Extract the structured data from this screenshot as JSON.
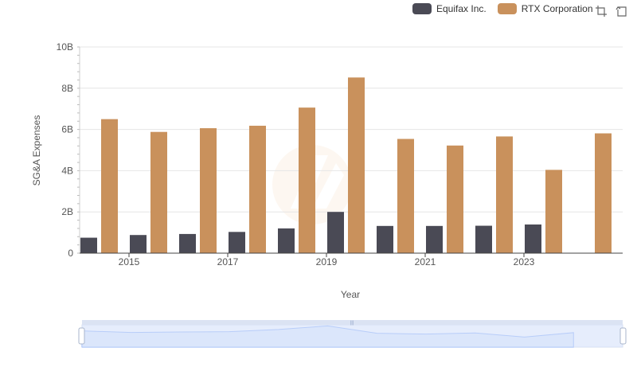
{
  "chart_data": {
    "type": "bar",
    "xlabel": "Year",
    "ylabel": "SG&A Expenses",
    "x": [
      2014,
      2015,
      2016,
      2017,
      2018,
      2019,
      2020,
      2021,
      2022,
      2023,
      2024
    ],
    "x_tick_labels": [
      "2015",
      "2017",
      "2019",
      "2021",
      "2023"
    ],
    "y_tick_labels": [
      "0",
      "2B",
      "4B",
      "6B",
      "8B",
      "10B"
    ],
    "ylim": [
      0,
      10000000000
    ],
    "grid": true,
    "legend_position": "top-right",
    "series": [
      {
        "name": "Equifax Inc.",
        "color": "#4a4a55",
        "values": [
          750000000,
          880000000,
          930000000,
          1030000000,
          1200000000,
          2000000000,
          1320000000,
          1320000000,
          1330000000,
          1390000000,
          null
        ]
      },
      {
        "name": "RTX Corporation",
        "color": "#c9915c",
        "values": [
          6500000000,
          5880000000,
          6060000000,
          6180000000,
          7060000000,
          8520000000,
          5540000000,
          5220000000,
          5660000000,
          4040000000,
          5810000000
        ]
      }
    ]
  },
  "legend": {
    "items": [
      {
        "label": "Equifax Inc.",
        "color": "#4a4a55"
      },
      {
        "label": "RTX Corporation",
        "color": "#c9915c"
      }
    ]
  },
  "toolbar": {
    "icons": [
      "crop-zoom-icon",
      "restore-icon"
    ]
  },
  "data_zoom": {
    "range_start_percent": 0,
    "range_end_percent": 100,
    "fill_color": "#dbe6fb",
    "line_color": "#8fb0f7"
  }
}
